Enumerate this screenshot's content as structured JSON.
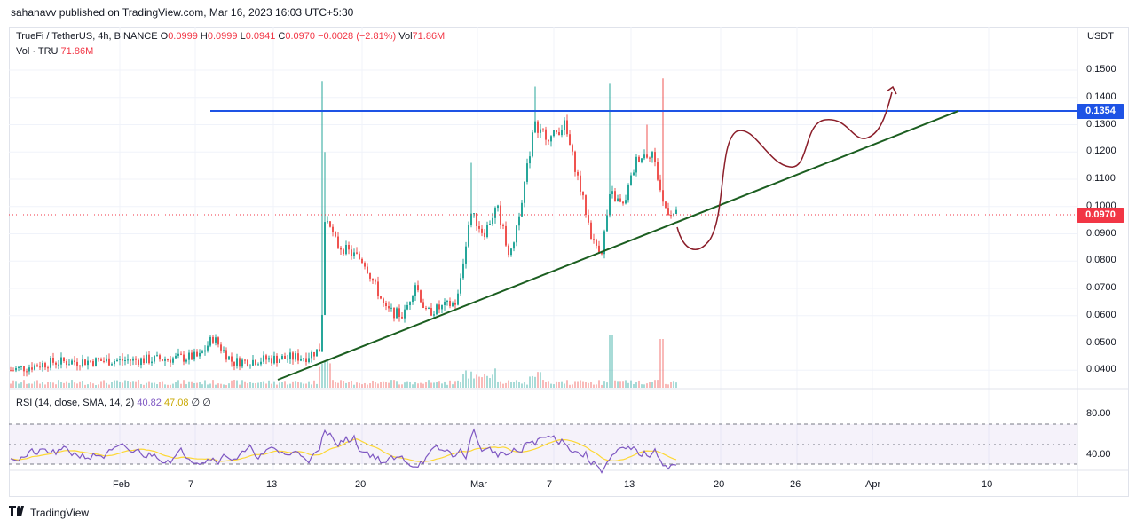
{
  "header": {
    "published_text": "sahanavv published on TradingView.com, Mar 16, 2023 16:03 UTC+5:30"
  },
  "legend": {
    "symbol": "TrueFi / TetherUS, 4h, BINANCE",
    "o_label": "O",
    "o_value": "0.0999",
    "h_label": "H",
    "h_value": "0.0999",
    "l_label": "L",
    "l_value": "0.0941",
    "c_label": "C",
    "c_value": "0.0970",
    "change": "−0.0028 (−2.81%)",
    "vol_label": "Vol",
    "vol_value": "71.86M",
    "vol_line_label": "Vol · TRU",
    "vol_line_value": "71.86M"
  },
  "rsi_legend": {
    "label": "RSI (14, close, SMA, 14, 2)",
    "rsi_value": "40.82",
    "sma_value": "47.08",
    "extra1": "∅",
    "extra2": "∅"
  },
  "price_axis": {
    "currency": "USDT",
    "ticks": [
      "0.1500",
      "0.1400",
      "0.1300",
      "0.1200",
      "0.1100",
      "0.1000",
      "0.0900",
      "0.0800",
      "0.0700",
      "0.0600",
      "0.0500",
      "0.0400"
    ],
    "tag_resistance": "0.1354",
    "tag_current": "0.0970"
  },
  "rsi_axis": {
    "ticks": [
      "80.00",
      "40.00"
    ]
  },
  "time_axis": {
    "ticks": [
      "Feb",
      "7",
      "13",
      "20",
      "Mar",
      "7",
      "13",
      "20",
      "26",
      "Apr",
      "10"
    ]
  },
  "colors": {
    "up": "#26a69a",
    "down": "#ef5350",
    "resistance_line": "#1e53e5",
    "trend_line": "#1b5e20",
    "projection": "#8b1e2a",
    "current_price": "#f23645",
    "rsi_line": "#7e57c2",
    "rsi_sma": "#fdd835"
  },
  "footer": {
    "brand": "TradingView",
    "logo_icon": "tradingview-logo-icon"
  }
}
